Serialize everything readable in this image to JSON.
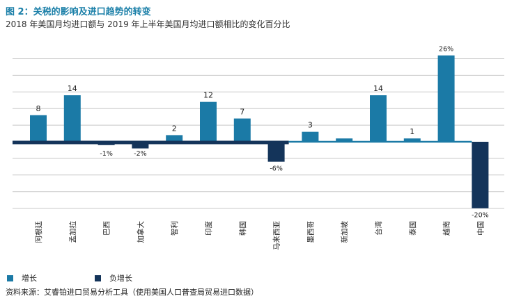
{
  "title": "图 2：关税的影响及进口趋势的转变",
  "subtitle": "2018 年美国月均进口额与 2019 年上半年美国月均进口额相比的变化百分比",
  "colors": {
    "growth": "#1b7aa6",
    "decline": "#14345a",
    "grid": "#c8c8c8"
  },
  "legend": {
    "growth": "增长",
    "decline": "负增长"
  },
  "source": "资料来源：艾睿铂进口贸易分析工具（使用美国人口普查局贸易进口数据）",
  "chart_data": {
    "type": "bar",
    "categories": [
      "阿根廷",
      "孟加拉",
      "巴西",
      "加拿大",
      "智利",
      "印度",
      "韩国",
      "马来西亚",
      "墨西哥",
      "新加坡",
      "台湾",
      "泰国",
      "越南",
      "中国"
    ],
    "values": [
      8,
      14,
      -1,
      -2,
      2,
      12,
      7,
      -6,
      3,
      1,
      14,
      1,
      26,
      -20
    ],
    "data_labels": [
      "8",
      "14",
      "-1%",
      "-2%",
      "2",
      "12",
      "7",
      "-6%",
      "3",
      "",
      "14",
      "1",
      "26%",
      "-20%"
    ],
    "legend_placement": "bottom-left",
    "grid": true
  }
}
